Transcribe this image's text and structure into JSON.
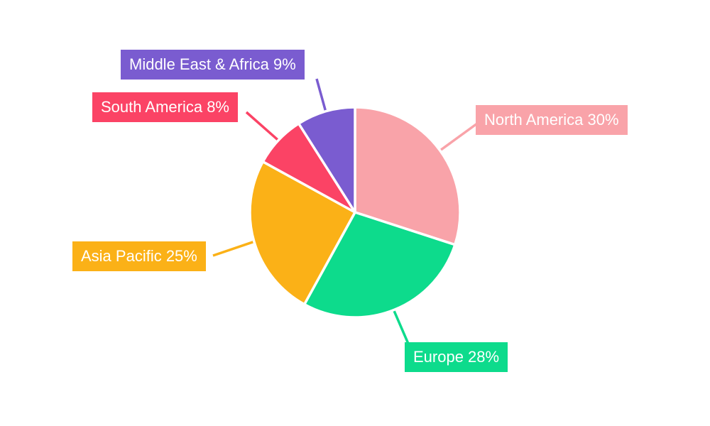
{
  "chart_data": {
    "type": "pie",
    "direction": "clockwise",
    "start_angle_deg": 0,
    "unit": "%",
    "background": "#FFFFFF",
    "label_text_color": "#FFFFFF",
    "legend_position": "callout-labels",
    "slices": [
      {
        "label": "North America",
        "value": 30,
        "display": "North America 30%",
        "color": "#F9A3A9"
      },
      {
        "label": "Europe",
        "value": 28,
        "display": "Europe 28%",
        "color": "#0DDB8C"
      },
      {
        "label": "Asia Pacific",
        "value": 25,
        "display": "Asia Pacific 25%",
        "color": "#FBB117"
      },
      {
        "label": "South America",
        "value": 8,
        "display": "South America 8%",
        "color": "#FB4365"
      },
      {
        "label": "Middle East & Africa",
        "value": 9,
        "display": "Middle East & Africa 9%",
        "color": "#7A5CD0"
      }
    ]
  }
}
